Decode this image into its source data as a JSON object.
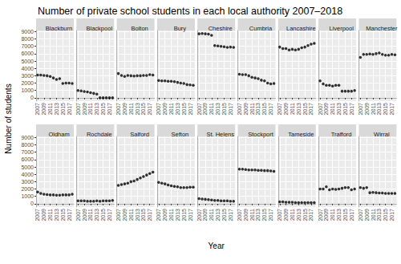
{
  "chart_data": {
    "type": "scatter",
    "title": "Number of private school students in each local authority 2007–2018",
    "x_label": "Year",
    "y_label": "Number of students",
    "x": [
      2007,
      2008,
      2009,
      2010,
      2011,
      2012,
      2013,
      2014,
      2015,
      2016,
      2017,
      2018
    ],
    "xlim": [
      2006.5,
      2018.5
    ],
    "xticks": [
      2007,
      2009,
      2011,
      2013,
      2015,
      2017
    ],
    "ylim": [
      -450,
      9150
    ],
    "yticks": [
      0,
      1000,
      2000,
      3000,
      4000,
      5000,
      6000,
      7000,
      8000,
      9000
    ],
    "grid": true,
    "color": "#000000",
    "marker": "circle",
    "facets": [
      {
        "name": "Blackburn",
        "values": [
          3100,
          3100,
          3050,
          3000,
          2900,
          2700,
          2500,
          2600,
          1950,
          2000,
          2000,
          1950
        ]
      },
      {
        "name": "Blackpool",
        "values": [
          1000,
          950,
          850,
          800,
          700,
          600,
          500,
          0,
          0,
          0,
          0,
          0
        ]
      },
      {
        "name": "Bolton",
        "values": [
          3300,
          3050,
          2900,
          3050,
          3000,
          2950,
          3000,
          3000,
          3050,
          3050,
          3150,
          3100
        ]
      },
      {
        "name": "Bury",
        "values": [
          2350,
          2300,
          2300,
          2250,
          2250,
          2200,
          2100,
          2000,
          1950,
          1800,
          1750,
          1700
        ]
      },
      {
        "name": "Cheshire",
        "values": [
          8700,
          8750,
          8700,
          8650,
          8500,
          7100,
          7050,
          7000,
          6950,
          6850,
          6900,
          6850
        ]
      },
      {
        "name": "Cumbria",
        "values": [
          3200,
          3150,
          3150,
          3000,
          2800,
          2700,
          2600,
          2400,
          2300,
          2000,
          1900,
          1950
        ]
      },
      {
        "name": "Lancashire",
        "values": [
          6900,
          6700,
          6700,
          6500,
          6600,
          6500,
          6600,
          6800,
          6900,
          7100,
          7300,
          7400
        ]
      },
      {
        "name": "Liverpool",
        "values": [
          2300,
          1900,
          1700,
          1700,
          1600,
          1700,
          1700,
          900,
          900,
          900,
          900,
          1000
        ]
      },
      {
        "name": "Manchester",
        "values": [
          5500,
          5900,
          5900,
          5950,
          5900,
          6000,
          6100,
          5900,
          5800,
          5800,
          5900,
          5850
        ]
      },
      {
        "name": "Oldham",
        "values": [
          1600,
          1400,
          1300,
          1250,
          1200,
          1200,
          1150,
          1150,
          1200,
          1200,
          1200,
          1300
        ]
      },
      {
        "name": "Rochdale",
        "values": [
          400,
          400,
          400,
          350,
          350,
          350,
          400,
          350,
          400,
          400,
          400,
          450
        ]
      },
      {
        "name": "Salford",
        "values": [
          2500,
          2600,
          2700,
          2800,
          3000,
          3100,
          3300,
          3500,
          3700,
          3900,
          4100,
          4300
        ]
      },
      {
        "name": "Sefton",
        "values": [
          2900,
          2800,
          2700,
          2550,
          2450,
          2350,
          2300,
          2200,
          2200,
          2200,
          2250,
          2250
        ]
      },
      {
        "name": "St. Helens",
        "values": [
          700,
          650,
          600,
          550,
          500,
          450,
          450,
          400,
          400,
          400,
          350,
          350
        ]
      },
      {
        "name": "Stockport",
        "values": [
          4700,
          4700,
          4650,
          4600,
          4600,
          4600,
          4550,
          4550,
          4500,
          4500,
          4450,
          4400
        ]
      },
      {
        "name": "Tameside",
        "values": [
          250,
          250,
          200,
          200,
          200,
          150,
          150,
          150,
          150,
          150,
          150,
          150
        ]
      },
      {
        "name": "Trafford",
        "values": [
          2000,
          2000,
          2300,
          1900,
          2000,
          1950,
          2000,
          2100,
          2200,
          2200,
          1900,
          2000
        ]
      },
      {
        "name": "Wirral",
        "values": [
          2200,
          2100,
          2200,
          1500,
          1550,
          1500,
          1450,
          1450,
          1400,
          1400,
          1400,
          1400
        ]
      }
    ]
  }
}
